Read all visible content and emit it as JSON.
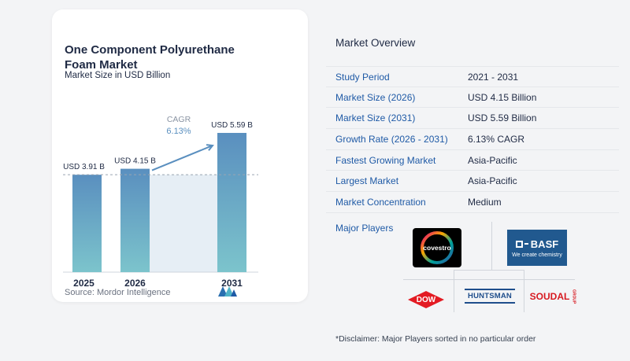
{
  "left": {
    "title": "One Component Polyurethane Foam Market",
    "subtitle": "Market Size in USD Billion",
    "source": "Source: Mordor Intelligence"
  },
  "chart_data": {
    "type": "bar",
    "categories": [
      "2025",
      "2026",
      "2031"
    ],
    "values": [
      3.91,
      4.15,
      5.59
    ],
    "data_labels": [
      "USD 3.91 B",
      "USD 4.15 B",
      "USD 5.59 B"
    ],
    "title": "One Component Polyurethane Foam Market",
    "subtitle": "Market Size in USD Billion",
    "annotation": {
      "label": "CAGR",
      "value": "6.13%"
    },
    "ylim": [
      0,
      6
    ],
    "grid": false,
    "colors": {
      "bar_top": "#5a8fbf",
      "bar_bottom": "#7cc4cc",
      "band": "#e6eef5",
      "arrow": "#5a8fbf",
      "reference_line": "#9aa5b1"
    }
  },
  "overview": {
    "title": "Market Overview",
    "rows": [
      {
        "key": "Study Period",
        "value": "2021 - 2031"
      },
      {
        "key": "Market Size (2026)",
        "value": "USD 4.15 Billion"
      },
      {
        "key": "Market Size (2031)",
        "value": "USD 5.59 Billion"
      },
      {
        "key": "Growth Rate (2026 - 2031)",
        "value": "6.13% CAGR"
      },
      {
        "key": "Fastest Growing Market",
        "value": "Asia-Pacific"
      },
      {
        "key": "Largest Market",
        "value": "Asia-Pacific"
      },
      {
        "key": "Market Concentration",
        "value": "Medium"
      }
    ],
    "players_label": "Major Players",
    "disclaimer": "*Disclaimer: Major Players sorted in no particular order"
  },
  "logos": {
    "covestro": "covestro",
    "basf": "BASF",
    "basf_tagline": "We create chemistry",
    "dow": "DOW",
    "huntsman": "HUNTSMAN",
    "soudal": "SOUDAL",
    "soudal_suffix": "GROUP"
  }
}
